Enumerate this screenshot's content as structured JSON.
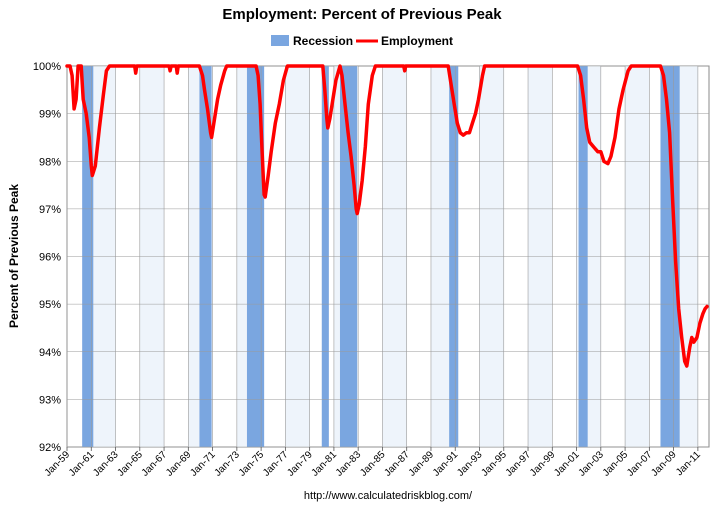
{
  "chart_data": {
    "type": "line",
    "title": "Employment: Percent of Previous Peak",
    "ylabel": "Percent of Previous Peak",
    "xlabel": "",
    "source": "http://www.calculatedriskblog.com/",
    "ylim": [
      92,
      100
    ],
    "xlim": [
      "1959-01",
      "2011-12"
    ],
    "y_ticks": [
      "92%",
      "93%",
      "94%",
      "95%",
      "96%",
      "97%",
      "98%",
      "99%",
      "100%"
    ],
    "x_ticks": [
      "Jan-59",
      "Jan-61",
      "Jan-63",
      "Jan-65",
      "Jan-67",
      "Jan-69",
      "Jan-71",
      "Jan-73",
      "Jan-75",
      "Jan-77",
      "Jan-79",
      "Jan-81",
      "Jan-83",
      "Jan-85",
      "Jan-87",
      "Jan-89",
      "Jan-91",
      "Jan-93",
      "Jan-95",
      "Jan-97",
      "Jan-99",
      "Jan-01",
      "Jan-03",
      "Jan-05",
      "Jan-07",
      "Jan-09",
      "Jan-11"
    ],
    "grid": true,
    "legend_position": "top",
    "legend": [
      {
        "name": "Recession",
        "color": "#7aa6e0",
        "kind": "bar"
      },
      {
        "name": "Employment",
        "color": "#ff0000",
        "kind": "line"
      }
    ],
    "recessions": [
      {
        "start": "1960-04",
        "end": "1961-02"
      },
      {
        "start": "1969-12",
        "end": "1970-11"
      },
      {
        "start": "1973-11",
        "end": "1975-03"
      },
      {
        "start": "1980-01",
        "end": "1980-07"
      },
      {
        "start": "1981-07",
        "end": "1982-11"
      },
      {
        "start": "1990-07",
        "end": "1991-03"
      },
      {
        "start": "2001-03",
        "end": "2001-11"
      },
      {
        "start": "2007-12",
        "end": "2009-06"
      }
    ],
    "series": [
      {
        "name": "Employment",
        "color": "#ff0000",
        "points": [
          [
            "1959-01",
            100
          ],
          [
            "1959-04",
            100
          ],
          [
            "1959-06",
            99.8
          ],
          [
            "1959-08",
            99.1
          ],
          [
            "1959-10",
            99.3
          ],
          [
            "1959-12",
            100
          ],
          [
            "1960-03",
            100
          ],
          [
            "1960-05",
            99.3
          ],
          [
            "1960-08",
            99.0
          ],
          [
            "1960-11",
            98.5
          ],
          [
            "1961-01",
            97.9
          ],
          [
            "1961-02",
            97.7
          ],
          [
            "1961-05",
            97.9
          ],
          [
            "1961-09",
            98.7
          ],
          [
            "1962-01",
            99.4
          ],
          [
            "1962-04",
            99.9
          ],
          [
            "1962-07",
            100
          ],
          [
            "1963-01",
            100
          ],
          [
            "1964-08",
            100
          ],
          [
            "1964-09",
            99.85
          ],
          [
            "1964-10",
            100
          ],
          [
            "1967-06",
            100
          ],
          [
            "1967-07",
            99.9
          ],
          [
            "1967-08",
            100
          ],
          [
            "1968-01",
            100
          ],
          [
            "1968-02",
            99.85
          ],
          [
            "1968-03",
            100
          ],
          [
            "1969-12",
            100
          ],
          [
            "1970-03",
            99.8
          ],
          [
            "1970-05",
            99.5
          ],
          [
            "1970-08",
            99.1
          ],
          [
            "1970-11",
            98.6
          ],
          [
            "1970-12",
            98.5
          ],
          [
            "1971-03",
            98.9
          ],
          [
            "1971-06",
            99.3
          ],
          [
            "1971-09",
            99.6
          ],
          [
            "1972-01",
            99.9
          ],
          [
            "1972-03",
            100
          ],
          [
            "1974-08",
            100
          ],
          [
            "1974-10",
            99.8
          ],
          [
            "1974-12",
            99.2
          ],
          [
            "1975-02",
            98.2
          ],
          [
            "1975-04",
            97.3
          ],
          [
            "1975-05",
            97.25
          ],
          [
            "1975-08",
            97.7
          ],
          [
            "1975-11",
            98.2
          ],
          [
            "1976-03",
            98.8
          ],
          [
            "1976-07",
            99.2
          ],
          [
            "1976-11",
            99.7
          ],
          [
            "1977-03",
            100
          ],
          [
            "1980-02",
            100
          ],
          [
            "1980-04",
            99.5
          ],
          [
            "1980-06",
            98.9
          ],
          [
            "1980-07",
            98.7
          ],
          [
            "1980-09",
            98.9
          ],
          [
            "1980-12",
            99.3
          ],
          [
            "1981-03",
            99.7
          ],
          [
            "1981-07",
            100
          ],
          [
            "1981-09",
            99.8
          ],
          [
            "1981-12",
            99.2
          ],
          [
            "1982-03",
            98.6
          ],
          [
            "1982-06",
            98.1
          ],
          [
            "1982-09",
            97.5
          ],
          [
            "1982-11",
            97.0
          ],
          [
            "1982-12",
            96.9
          ],
          [
            "1983-02",
            97.1
          ],
          [
            "1983-05",
            97.6
          ],
          [
            "1983-08",
            98.3
          ],
          [
            "1983-11",
            99.2
          ],
          [
            "1984-03",
            99.8
          ],
          [
            "1984-06",
            100
          ],
          [
            "1986-10",
            100
          ],
          [
            "1986-11",
            99.9
          ],
          [
            "1986-12",
            100
          ],
          [
            "1990-06",
            100
          ],
          [
            "1990-09",
            99.6
          ],
          [
            "1990-12",
            99.2
          ],
          [
            "1991-03",
            98.8
          ],
          [
            "1991-06",
            98.6
          ],
          [
            "1991-09",
            98.55
          ],
          [
            "1991-12",
            98.6
          ],
          [
            "1992-03",
            98.6
          ],
          [
            "1992-06",
            98.8
          ],
          [
            "1992-09",
            99.0
          ],
          [
            "1992-12",
            99.3
          ],
          [
            "1993-04",
            99.8
          ],
          [
            "1993-06",
            100
          ],
          [
            "2001-02",
            100
          ],
          [
            "2001-05",
            99.8
          ],
          [
            "2001-08",
            99.3
          ],
          [
            "2001-11",
            98.7
          ],
          [
            "2002-02",
            98.4
          ],
          [
            "2002-06",
            98.3
          ],
          [
            "2002-10",
            98.2
          ],
          [
            "2003-01",
            98.2
          ],
          [
            "2003-04",
            98.0
          ],
          [
            "2003-08",
            97.95
          ],
          [
            "2003-11",
            98.1
          ],
          [
            "2004-03",
            98.5
          ],
          [
            "2004-07",
            99.1
          ],
          [
            "2004-11",
            99.5
          ],
          [
            "2005-04",
            99.9
          ],
          [
            "2005-07",
            100
          ],
          [
            "2007-12",
            100
          ],
          [
            "2008-03",
            99.8
          ],
          [
            "2008-06",
            99.3
          ],
          [
            "2008-09",
            98.6
          ],
          [
            "2008-12",
            97.2
          ],
          [
            "2009-03",
            95.9
          ],
          [
            "2009-06",
            94.9
          ],
          [
            "2009-09",
            94.3
          ],
          [
            "2009-12",
            93.8
          ],
          [
            "2010-02",
            93.7
          ],
          [
            "2010-05",
            94.1
          ],
          [
            "2010-07",
            94.3
          ],
          [
            "2010-09",
            94.2
          ],
          [
            "2010-12",
            94.3
          ],
          [
            "2011-03",
            94.6
          ],
          [
            "2011-06",
            94.8
          ],
          [
            "2011-08",
            94.9
          ],
          [
            "2011-10",
            94.95
          ]
        ]
      }
    ]
  }
}
